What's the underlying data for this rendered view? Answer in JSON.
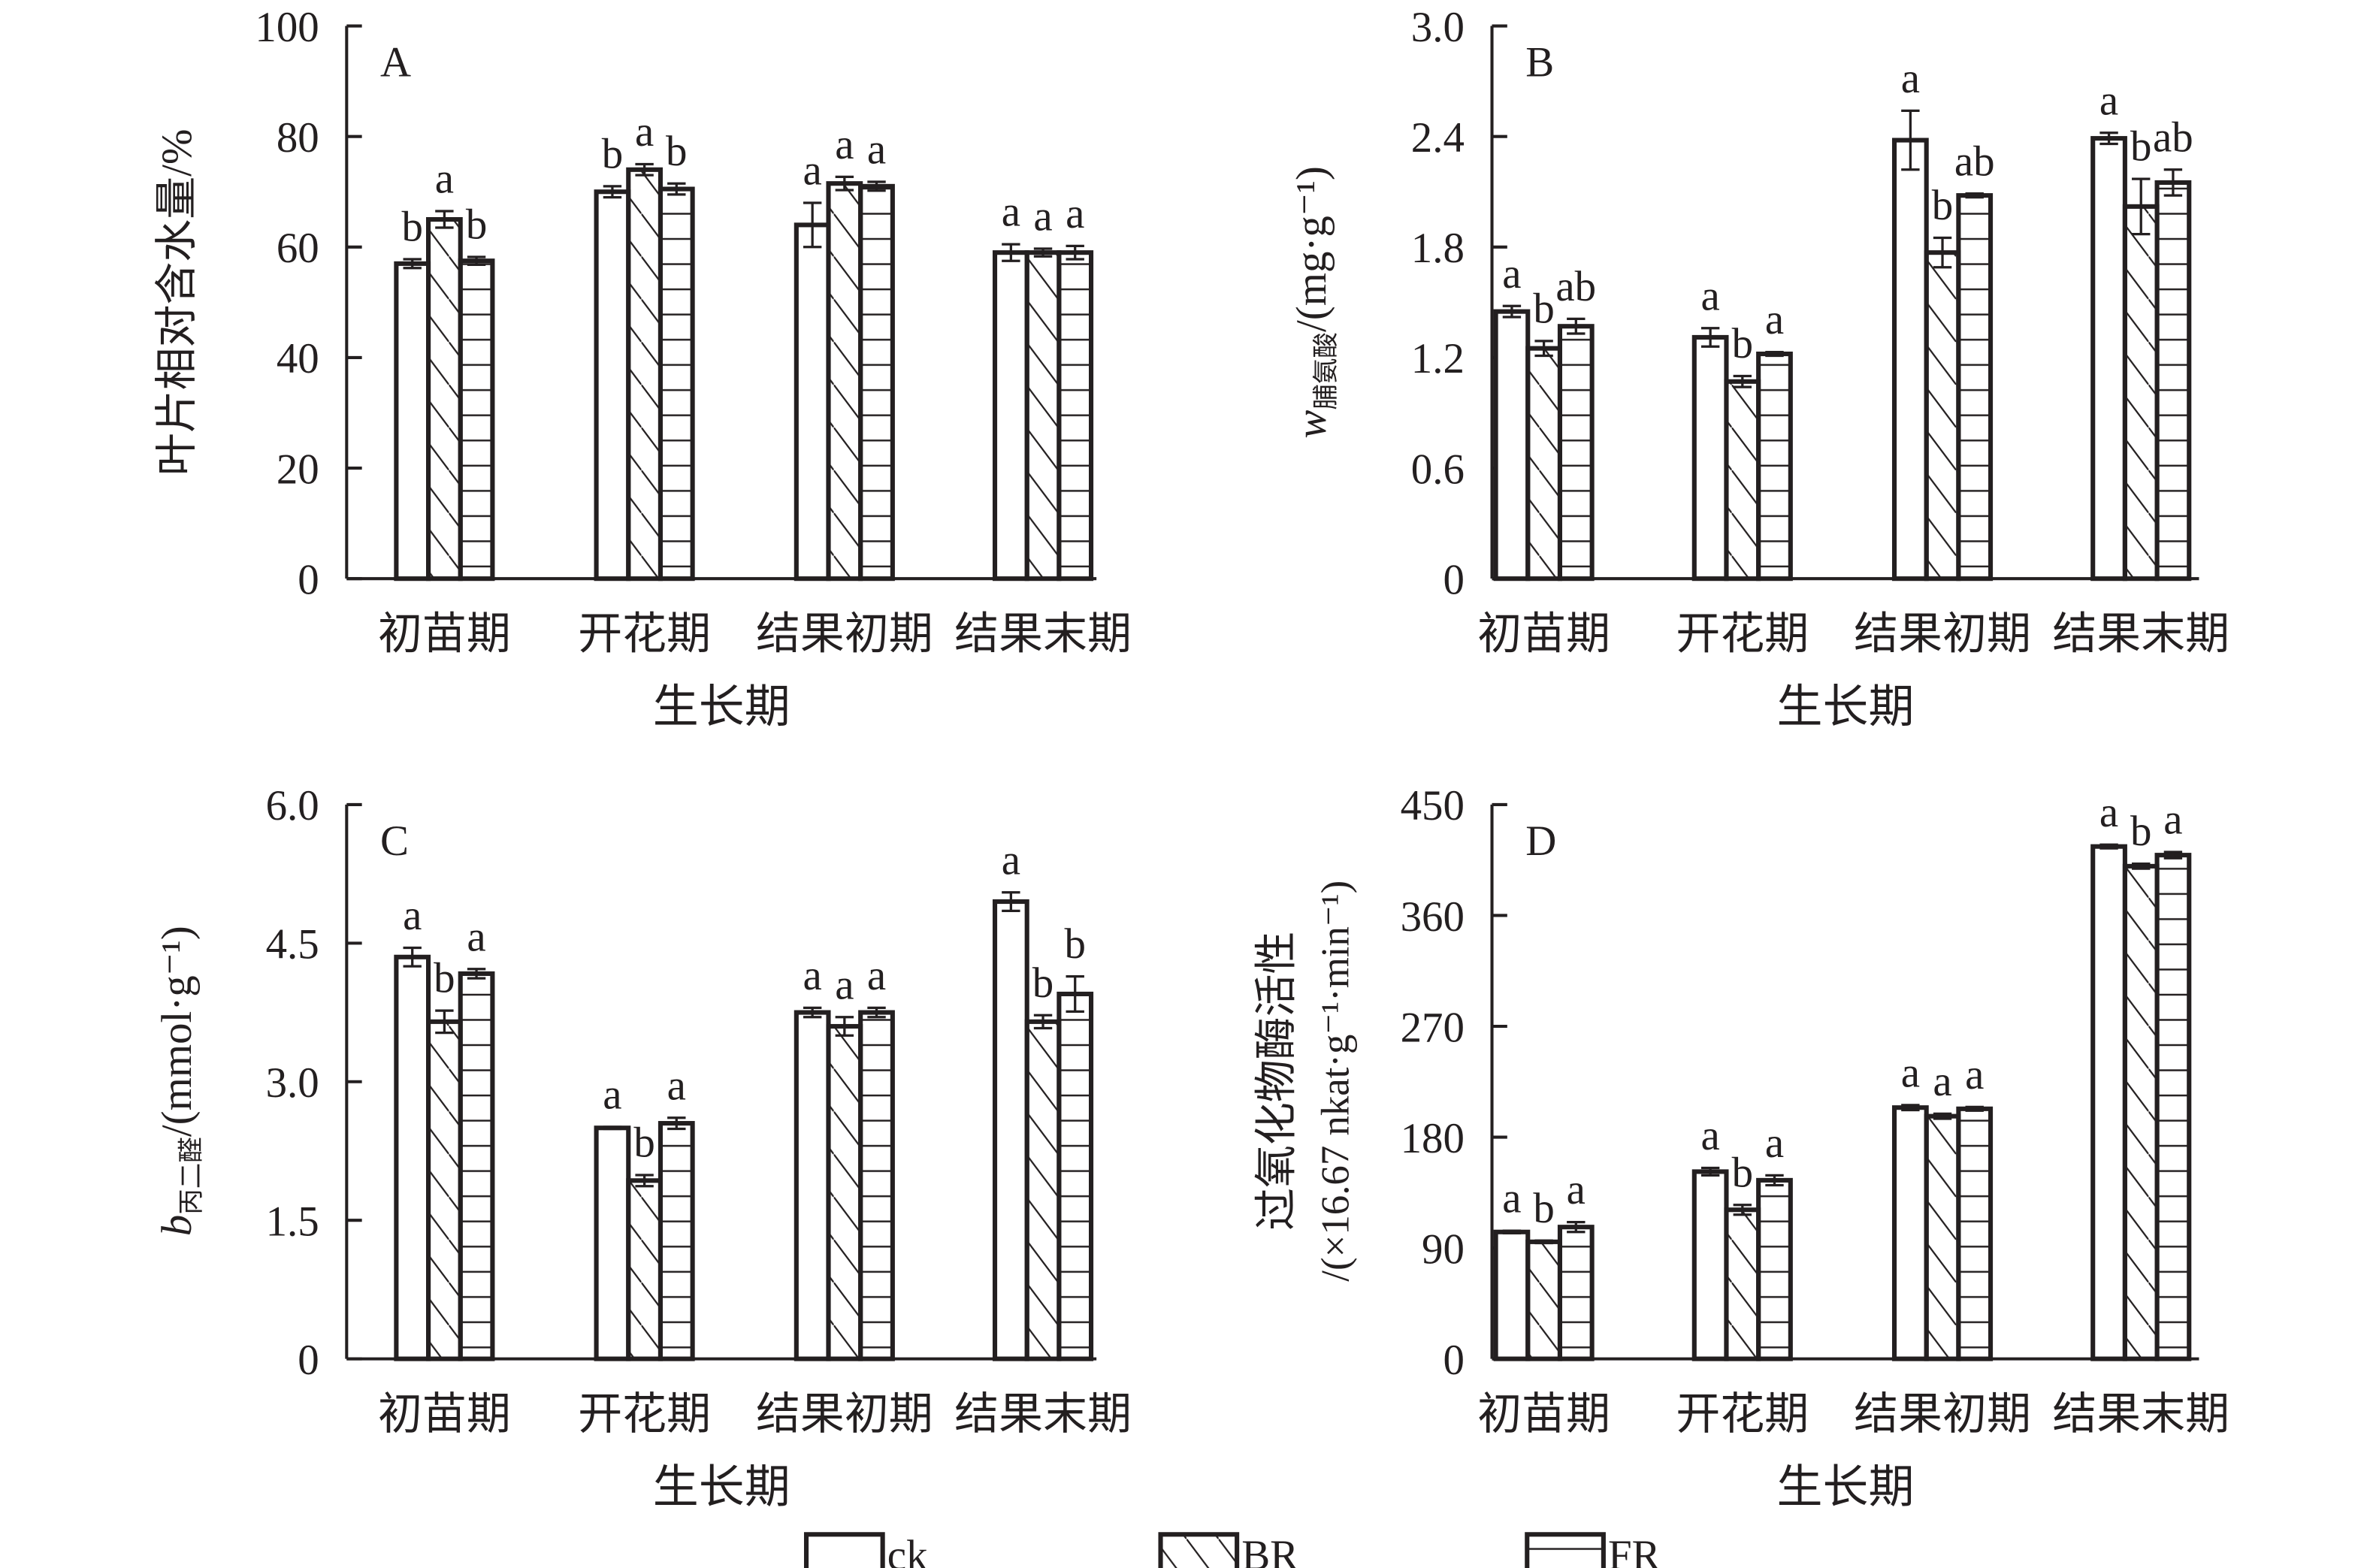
{
  "legend": {
    "items": [
      {
        "label": "ck",
        "pattern": "none"
      },
      {
        "label": "BR",
        "pattern": "diagonal"
      },
      {
        "label": "FR",
        "pattern": "horizontal"
      }
    ]
  },
  "colors": {
    "ink": "#231f20",
    "fill": "#ffffff"
  },
  "chart_data": [
    {
      "type": "bar",
      "panel": "A",
      "categories": [
        "初苗期",
        "开花期",
        "结果初期",
        "结果末期"
      ],
      "xlabel": "生长期",
      "ylabel": {
        "main": "叶片相对含水量/%",
        "sub": "",
        "unit": ""
      },
      "ylim": [
        0,
        100
      ],
      "yticks": [
        "0",
        "20",
        "40",
        "60",
        "80",
        "100"
      ],
      "series": [
        {
          "name": "ck",
          "values": [
            57,
            70,
            64,
            59
          ],
          "errors": [
            0.8,
            1,
            4,
            1.5
          ],
          "letters": [
            "b",
            "b",
            "a",
            "a"
          ]
        },
        {
          "name": "BR",
          "values": [
            65,
            74,
            71.5,
            59
          ],
          "errors": [
            1.5,
            1,
            1.2,
            0.7
          ],
          "letters": [
            "a",
            "a",
            "a",
            "a"
          ]
        },
        {
          "name": "FR",
          "values": [
            57.5,
            70.5,
            71,
            59
          ],
          "errors": [
            0.7,
            1,
            0.8,
            1.2
          ],
          "letters": [
            "b",
            "b",
            "a",
            "a"
          ]
        }
      ]
    },
    {
      "type": "bar",
      "panel": "B",
      "categories": [
        "初苗期",
        "开花期",
        "结果初期",
        "结果末期"
      ],
      "xlabel": "生长期",
      "ylabel": {
        "main": "w",
        "sub": "脯氨酸",
        "unit": "/(mg·g⁻¹)"
      },
      "ylim": [
        0,
        3.0
      ],
      "yticks": [
        "0",
        "0.6",
        "1.2",
        "1.8",
        "2.4",
        "3.0"
      ],
      "series": [
        {
          "name": "ck",
          "values": [
            1.45,
            1.31,
            2.38,
            2.39
          ],
          "errors": [
            0.03,
            0.05,
            0.16,
            0.03
          ],
          "letters": [
            "a",
            "a",
            "a",
            "a"
          ]
        },
        {
          "name": "BR",
          "values": [
            1.25,
            1.07,
            1.77,
            2.02
          ],
          "errors": [
            0.04,
            0.03,
            0.08,
            0.15
          ],
          "letters": [
            "b",
            "b",
            "b",
            "b"
          ]
        },
        {
          "name": "FR",
          "values": [
            1.37,
            1.22,
            2.08,
            2.15
          ],
          "errors": [
            0.04,
            0.01,
            0.01,
            0.07
          ],
          "letters": [
            "ab",
            "a",
            "ab",
            "ab"
          ]
        }
      ]
    },
    {
      "type": "bar",
      "panel": "C",
      "categories": [
        "初苗期",
        "开花期",
        "结果初期",
        "结果末期"
      ],
      "xlabel": "生长期",
      "ylabel": {
        "main": "b",
        "sub": "丙二醛",
        "unit": "/(mmol·g⁻¹)"
      },
      "ylim": [
        0,
        6.0
      ],
      "yticks": [
        "0",
        "1.5",
        "3.0",
        "4.5",
        "6.0"
      ],
      "series": [
        {
          "name": "ck",
          "values": [
            4.35,
            2.5,
            3.75,
            4.95
          ],
          "errors": [
            0.1,
            0.01,
            0.05,
            0.1
          ],
          "letters": [
            "a",
            "a",
            "a",
            "a"
          ]
        },
        {
          "name": "BR",
          "values": [
            3.65,
            1.93,
            3.6,
            3.65
          ],
          "errors": [
            0.12,
            0.06,
            0.1,
            0.07
          ],
          "letters": [
            "b",
            "b",
            "a",
            "b"
          ]
        },
        {
          "name": "FR",
          "values": [
            4.17,
            2.55,
            3.75,
            3.95
          ],
          "errors": [
            0.05,
            0.06,
            0.05,
            0.19
          ],
          "letters": [
            "a",
            "a",
            "a",
            "b"
          ]
        }
      ]
    },
    {
      "type": "bar",
      "panel": "D",
      "categories": [
        "初苗期",
        "开花期",
        "结果初期",
        "结果末期"
      ],
      "xlabel": "生长期",
      "ylabel": {
        "main": "过氧化物酶活性",
        "sub": "",
        "unit": "/(×16.67 nkat·g⁻¹·min⁻¹)"
      },
      "ylim": [
        0,
        450
      ],
      "yticks": [
        "0",
        "90",
        "180",
        "270",
        "360",
        "450"
      ],
      "series": [
        {
          "name": "ck",
          "values": [
            103,
            152,
            204,
            416
          ],
          "errors": [
            1,
            3,
            2,
            1.5
          ],
          "letters": [
            "a",
            "a",
            "a",
            "a"
          ]
        },
        {
          "name": "BR",
          "values": [
            95,
            121,
            197,
            400
          ],
          "errors": [
            1,
            4,
            2,
            2
          ],
          "letters": [
            "b",
            "b",
            "a",
            "b"
          ]
        },
        {
          "name": "FR",
          "values": [
            107,
            145,
            203,
            409
          ],
          "errors": [
            4,
            4,
            1.5,
            2.5
          ],
          "letters": [
            "a",
            "a",
            "a",
            "a"
          ]
        }
      ]
    }
  ]
}
